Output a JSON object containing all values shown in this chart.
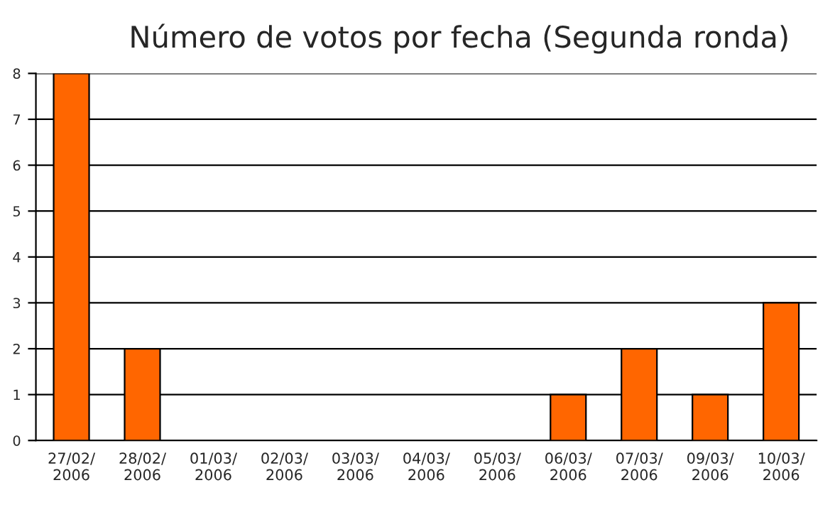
{
  "chart_data": {
    "type": "bar",
    "title": "Número de votos por fecha (Segunda ronda)",
    "categories": [
      "27/02/\n2006",
      "28/02/\n2006",
      "01/03/\n2006",
      "02/03/\n2006",
      "03/03/\n2006",
      "04/03/\n2006",
      "05/03/\n2006",
      "06/03/\n2006",
      "07/03/\n2006",
      "09/03/\n2006",
      "10/03/\n2006"
    ],
    "values": [
      8,
      2,
      0,
      0,
      0,
      0,
      0,
      1,
      2,
      1,
      3
    ],
    "color": "#ff6600",
    "ylim": [
      0,
      8
    ],
    "yticks": [
      0,
      1,
      2,
      3,
      4,
      5,
      6,
      7,
      8
    ],
    "grid": "y"
  }
}
